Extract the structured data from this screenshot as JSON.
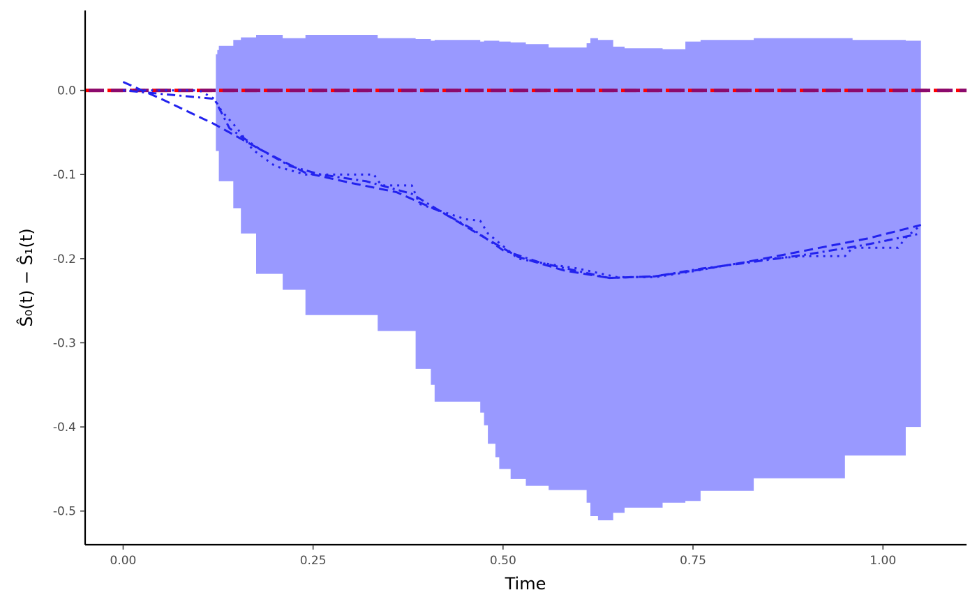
{
  "chart_data": {
    "type": "line",
    "title": "",
    "xlabel": "Time",
    "ylabel": "Ŝ₀(t) − Ŝ₁(t)",
    "xlim": [
      -0.05,
      1.11
    ],
    "ylim": [
      -0.54,
      0.095
    ],
    "x_ticks": [
      0.0,
      0.25,
      0.5,
      0.75,
      1.0
    ],
    "x_tick_labels": [
      "0.00",
      "0.25",
      "0.50",
      "0.75",
      "1.00"
    ],
    "y_ticks": [
      0.0,
      -0.1,
      -0.2,
      -0.3,
      -0.4,
      -0.5
    ],
    "y_tick_labels": [
      "0.0",
      "-0.1",
      "-0.2",
      "-0.3",
      "-0.4",
      "-0.5"
    ],
    "grid": false,
    "legend": "none",
    "colors": {
      "band_fill": "#9999ff",
      "curve": "#2222ee",
      "reference_red": "#ff0000",
      "reference_purple": "#8b0a6e"
    },
    "reference_line": {
      "y": 0.0
    },
    "confidence_band": {
      "x": [
        0.122,
        0.124,
        0.126,
        0.145,
        0.155,
        0.175,
        0.21,
        0.24,
        0.335,
        0.385,
        0.405,
        0.41,
        0.47,
        0.475,
        0.48,
        0.49,
        0.495,
        0.51,
        0.53,
        0.56,
        0.61,
        0.615,
        0.625,
        0.645,
        0.66,
        0.71,
        0.74,
        0.76,
        0.83,
        0.95,
        0.96,
        1.03,
        1.05
      ],
      "upper": [
        0.043,
        0.048,
        0.053,
        0.06,
        0.063,
        0.066,
        0.062,
        0.066,
        0.062,
        0.061,
        0.059,
        0.06,
        0.058,
        0.059,
        0.059,
        0.059,
        0.058,
        0.057,
        0.055,
        0.051,
        0.056,
        0.062,
        0.06,
        0.052,
        0.05,
        0.049,
        0.058,
        0.06,
        0.062,
        0.062,
        0.06,
        0.059,
        0.054
      ],
      "lower": [
        -0.072,
        -0.072,
        -0.108,
        -0.14,
        -0.17,
        -0.218,
        -0.237,
        -0.267,
        -0.286,
        -0.331,
        -0.35,
        -0.37,
        -0.383,
        -0.398,
        -0.42,
        -0.436,
        -0.45,
        -0.462,
        -0.47,
        -0.475,
        -0.49,
        -0.506,
        -0.511,
        -0.502,
        -0.496,
        -0.49,
        -0.488,
        -0.476,
        -0.461,
        -0.434,
        -0.434,
        -0.4,
        -0.4
      ]
    },
    "series": [
      {
        "style": "dashed",
        "x": [
          0.0,
          0.05,
          0.12,
          0.18,
          0.24,
          0.3,
          0.36,
          0.42,
          0.47,
          0.52,
          0.58,
          0.64,
          0.7,
          0.76,
          0.82,
          0.9,
          0.98,
          1.05
        ],
        "y": [
          0.01,
          -0.01,
          -0.04,
          -0.07,
          -0.098,
          -0.11,
          -0.121,
          -0.145,
          -0.172,
          -0.198,
          -0.214,
          -0.223,
          -0.221,
          -0.213,
          -0.204,
          -0.19,
          -0.176,
          -0.16
        ]
      },
      {
        "style": "dotted",
        "x": [
          0.0,
          0.1,
          0.12,
          0.13,
          0.15,
          0.17,
          0.2,
          0.24,
          0.33,
          0.34,
          0.38,
          0.39,
          0.45,
          0.47,
          0.48,
          0.52,
          0.55,
          0.6,
          0.65,
          0.7,
          0.75,
          0.8,
          0.85,
          0.9,
          0.95,
          0.96,
          1.02,
          1.03,
          1.05
        ],
        "y": [
          0.0,
          0.0,
          -0.01,
          -0.025,
          -0.045,
          -0.07,
          -0.09,
          -0.1,
          -0.1,
          -0.113,
          -0.113,
          -0.135,
          -0.153,
          -0.155,
          -0.17,
          -0.2,
          -0.205,
          -0.212,
          -0.222,
          -0.222,
          -0.215,
          -0.207,
          -0.2,
          -0.197,
          -0.197,
          -0.187,
          -0.187,
          -0.175,
          -0.16
        ]
      },
      {
        "style": "dotdash",
        "x": [
          0.0,
          0.12,
          0.14,
          0.18,
          0.22,
          0.26,
          0.32,
          0.38,
          0.42,
          0.46,
          0.5,
          0.55,
          0.6,
          0.64,
          0.7,
          0.76,
          0.82,
          0.9,
          0.98,
          1.05
        ],
        "y": [
          0.0,
          -0.01,
          -0.045,
          -0.07,
          -0.09,
          -0.1,
          -0.108,
          -0.123,
          -0.145,
          -0.165,
          -0.19,
          -0.205,
          -0.215,
          -0.223,
          -0.221,
          -0.212,
          -0.205,
          -0.195,
          -0.183,
          -0.17
        ]
      }
    ]
  }
}
